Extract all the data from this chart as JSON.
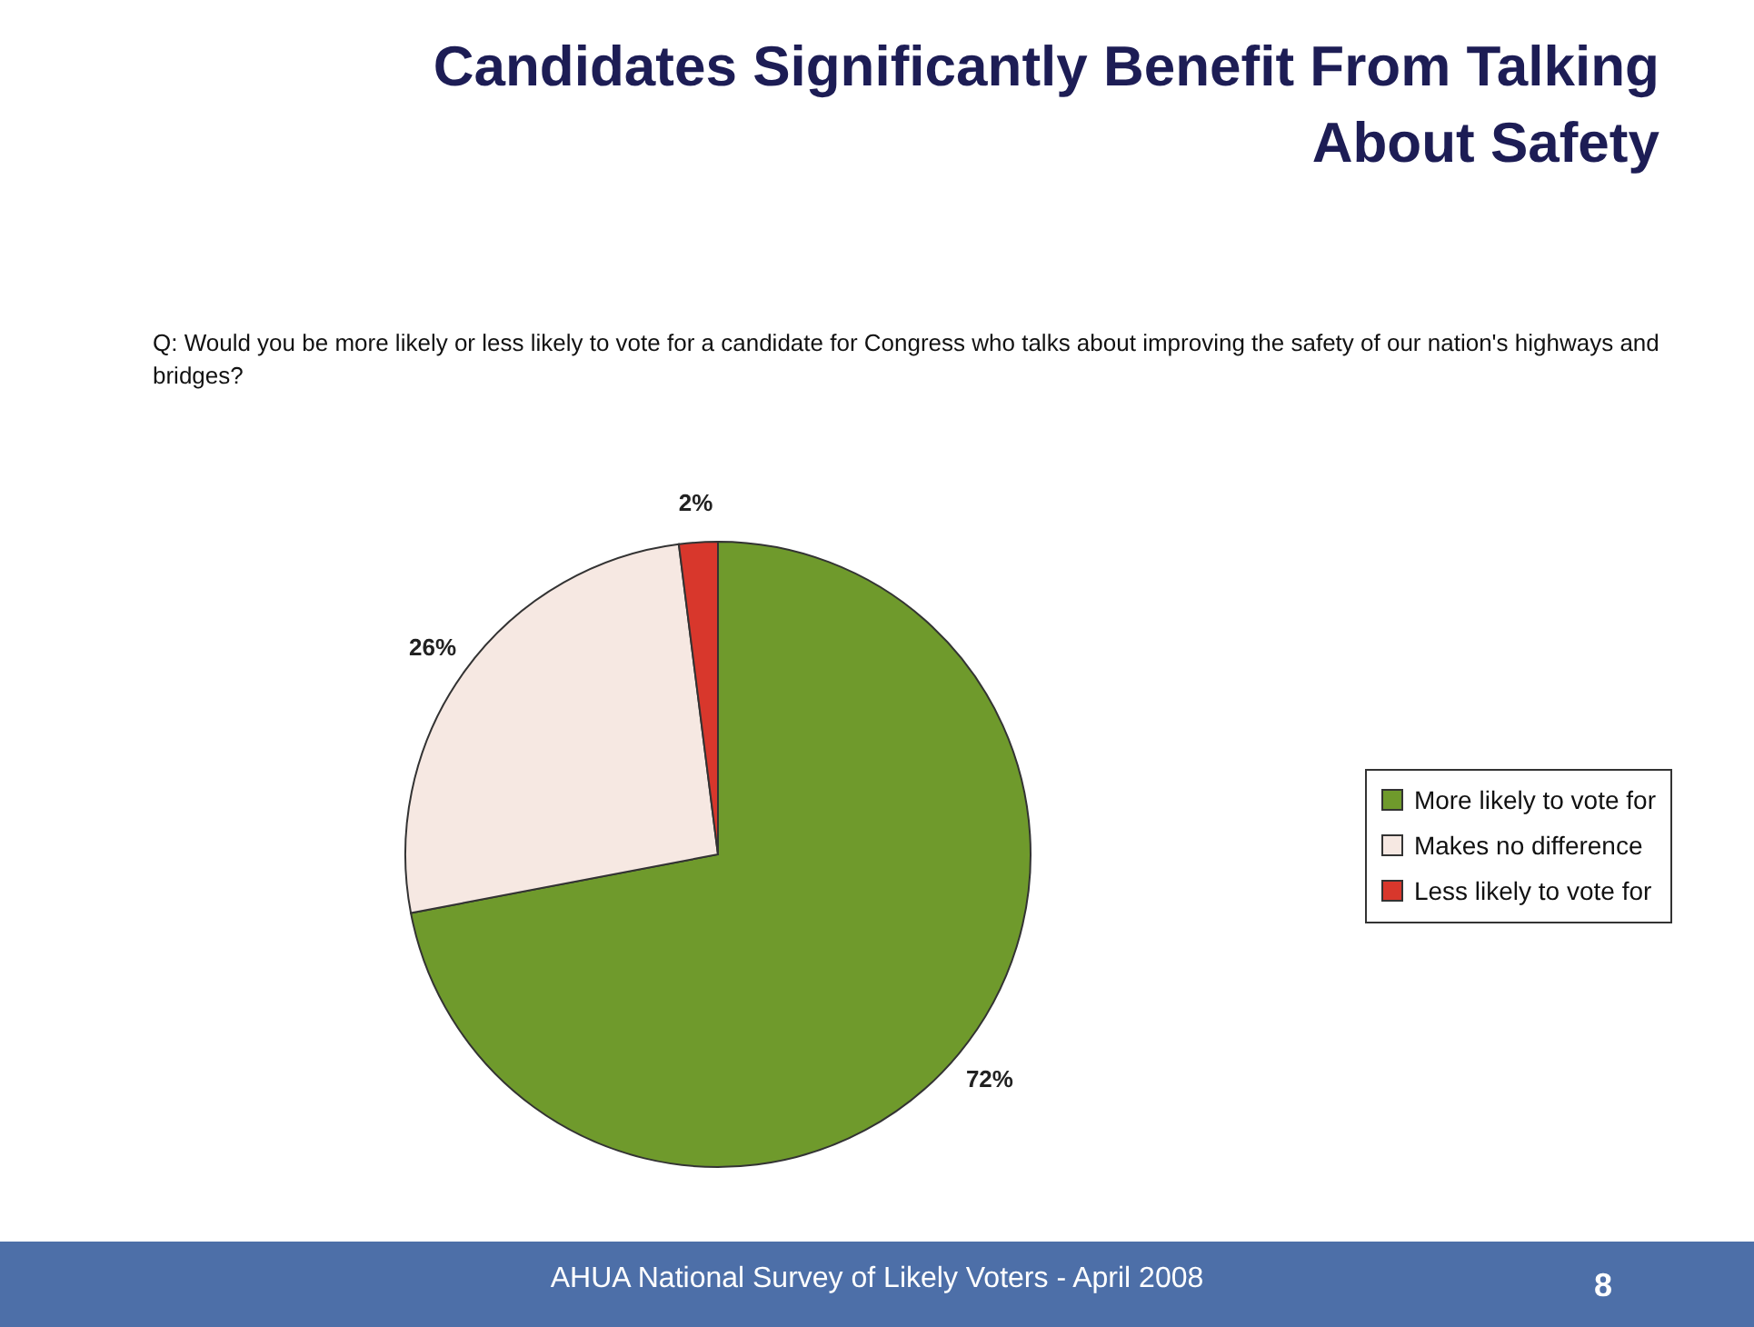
{
  "chart_data": {
    "type": "pie",
    "title": "Candidates Significantly Benefit From Talking About Safety",
    "subtitle": "Q: Would you be more likely or less likely to vote for a candidate for Congress who talks about improving the safety of our nation's highways and bridges?",
    "categories": [
      "More likely to vote for",
      "Makes no difference",
      "Less likely to vote for"
    ],
    "values": [
      72,
      26,
      2
    ],
    "value_labels": [
      "72%",
      "26%",
      "2%"
    ],
    "colors": [
      "#6f9a2c",
      "#f6e8e2",
      "#d8372c"
    ],
    "legend": "right",
    "annotations": [
      "AHUA National Survey of Likely Voters - April 2008",
      "8"
    ]
  }
}
